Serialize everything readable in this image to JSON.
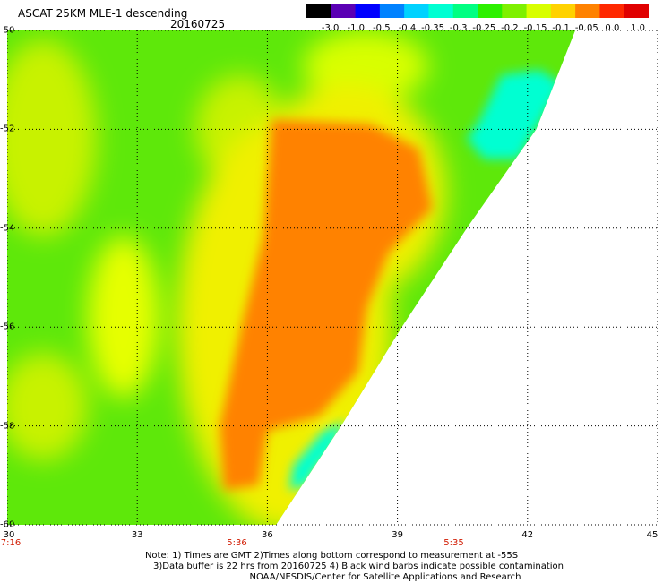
{
  "header": {
    "title": "ASCAT 25KM MLE-1 descending",
    "date": "20160725"
  },
  "colorbar": {
    "labels": [
      "-3.0",
      "-1.0",
      "-0.5",
      "-0.4",
      "-0.35",
      "-0.3",
      "-0.25",
      "-0.2",
      "-0.15",
      "-0.1",
      "-0.05",
      "0.0",
      "1.0"
    ],
    "colors": [
      "#000000",
      "#5a00b4",
      "#0000ff",
      "#0082ff",
      "#00d2ff",
      "#00ffd2",
      "#00ff82",
      "#2cf000",
      "#7ef000",
      "#d8ff00",
      "#ffd200",
      "#ff8200",
      "#ff2800",
      "#e00000"
    ]
  },
  "map": {
    "lon_range": [
      30,
      45
    ],
    "lat_range": [
      -50,
      -60
    ],
    "lon_ticks": [
      "30",
      "33",
      "36",
      "39",
      "42",
      "45"
    ],
    "lat_ticks": [
      "-50",
      "-52",
      "-54",
      "-56",
      "-58",
      "-60"
    ],
    "grid": true,
    "times": [
      {
        "label": "7:16",
        "lon": 30
      },
      {
        "label": "5:36",
        "lon": 35.3
      },
      {
        "label": "5:35",
        "lon": 40.3
      }
    ],
    "swath_edge": [
      [
        43.1,
        -50
      ],
      [
        42.2,
        -52
      ],
      [
        40.6,
        -54
      ],
      [
        39.1,
        -56
      ],
      [
        37.7,
        -58
      ],
      [
        36.2,
        -60
      ]
    ],
    "regions": [
      {
        "name": "high-mle-core",
        "level": 0.0,
        "color": "#ff8200",
        "outline": [
          [
            36.1,
            -51.8
          ],
          [
            38.4,
            -51.9
          ],
          [
            39.5,
            -52.4
          ],
          [
            39.8,
            -53.6
          ],
          [
            38.8,
            -54.5
          ],
          [
            38.3,
            -55.6
          ],
          [
            38.1,
            -56.9
          ],
          [
            37.2,
            -57.8
          ],
          [
            36.0,
            -58.1
          ],
          [
            35.8,
            -59.2
          ],
          [
            35.0,
            -59.3
          ],
          [
            34.9,
            -58.0
          ],
          [
            35.4,
            -56.0
          ],
          [
            35.9,
            -54.2
          ]
        ]
      },
      {
        "name": "low-mle-patch-east",
        "level": -0.3,
        "color": "#00ffd2",
        "outline": [
          [
            40.9,
            -51.8
          ],
          [
            41.4,
            -50.9
          ],
          [
            42.3,
            -50.8
          ],
          [
            42.8,
            -51.1
          ],
          [
            42.2,
            -52.0
          ],
          [
            41.8,
            -52.6
          ],
          [
            41.0,
            -52.6
          ],
          [
            40.6,
            -52.2
          ]
        ]
      },
      {
        "name": "low-mle-patch-south",
        "level": -0.3,
        "color": "#00ffd2",
        "outline": [
          [
            37.3,
            -58.1
          ],
          [
            37.8,
            -57.9
          ],
          [
            37.5,
            -58.5
          ],
          [
            37.1,
            -58.9
          ],
          [
            36.9,
            -59.2
          ],
          [
            36.5,
            -59.3
          ],
          [
            36.6,
            -58.8
          ]
        ]
      }
    ]
  },
  "footer": {
    "note1": "Note: 1) Times are GMT 2)Times along bottom correspond to measurement at -55S",
    "note2": "3)Data buffer is 22 hrs from 20160725 4) Black wind barbs indicate possible contamination",
    "note3": "NOAA/NESDIS/Center for Satellite Applications and Research"
  }
}
